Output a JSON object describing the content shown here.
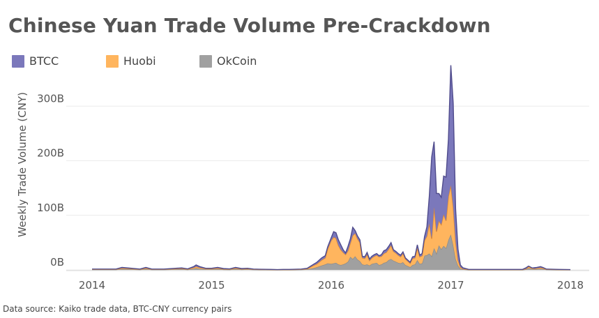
{
  "chart_data": {
    "type": "area",
    "stacked": true,
    "title": "Chinese Yuan Trade Volume Pre-Crackdown",
    "ylabel": "Weekly Trade Volume (CNY)",
    "xlabel": "",
    "ylim": [
      0,
      400
    ],
    "y_unit": "billion CNY",
    "y_ticks": [
      {
        "value": 0,
        "label": "0B"
      },
      {
        "value": 100,
        "label": "100B"
      },
      {
        "value": 200,
        "label": "200B"
      },
      {
        "value": 300,
        "label": "300B"
      }
    ],
    "xlim": [
      2014.0,
      2018.0
    ],
    "x_ticks": [
      {
        "value": 2014,
        "label": "2014"
      },
      {
        "value": 2015,
        "label": "2015"
      },
      {
        "value": 2016,
        "label": "2016"
      },
      {
        "value": 2017,
        "label": "2017"
      },
      {
        "value": 2018,
        "label": "2018"
      }
    ],
    "grid": true,
    "legend_position": "top-left",
    "x": [
      2014.0,
      2014.1,
      2014.2,
      2014.25,
      2014.3,
      2014.4,
      2014.45,
      2014.5,
      2014.6,
      2014.7,
      2014.75,
      2014.8,
      2014.85,
      2014.87,
      2014.9,
      2014.95,
      2015.0,
      2015.05,
      2015.1,
      2015.15,
      2015.2,
      2015.25,
      2015.3,
      2015.35,
      2015.4,
      2015.5,
      2015.55,
      2015.6,
      2015.65,
      2015.7,
      2015.75,
      2015.8,
      2015.85,
      2015.88,
      2015.92,
      2015.95,
      2015.97,
      2016.0,
      2016.02,
      2016.04,
      2016.06,
      2016.08,
      2016.1,
      2016.12,
      2016.14,
      2016.16,
      2016.18,
      2016.2,
      2016.22,
      2016.24,
      2016.26,
      2016.28,
      2016.3,
      2016.32,
      2016.34,
      2016.36,
      2016.38,
      2016.4,
      2016.42,
      2016.44,
      2016.46,
      2016.48,
      2016.5,
      2016.52,
      2016.54,
      2016.56,
      2016.58,
      2016.6,
      2016.62,
      2016.64,
      2016.66,
      2016.68,
      2016.7,
      2016.72,
      2016.74,
      2016.76,
      2016.78,
      2016.8,
      2016.82,
      2016.84,
      2016.86,
      2016.88,
      2016.9,
      2016.92,
      2016.94,
      2016.96,
      2016.98,
      2017.0,
      2017.02,
      2017.04,
      2017.06,
      2017.08,
      2017.1,
      2017.15,
      2017.2,
      2017.3,
      2017.5,
      2017.6,
      2017.63,
      2017.65,
      2017.68,
      2017.7,
      2017.72,
      2017.75,
      2017.77,
      2017.8,
      2017.9,
      2018.0
    ],
    "series": [
      {
        "name": "OkCoin",
        "color": "#a0a0a0",
        "values": [
          0.5,
          0.5,
          0.5,
          1.5,
          1.2,
          0.5,
          1.5,
          0.5,
          0.5,
          1,
          1.2,
          0.6,
          2,
          3,
          2,
          1,
          1,
          1.5,
          0.8,
          0.6,
          1.5,
          0.8,
          1,
          0.5,
          0.4,
          0.3,
          0.2,
          0.3,
          0.3,
          0.4,
          0.5,
          1,
          3,
          5,
          8,
          10,
          12,
          11,
          12,
          13,
          10,
          9,
          10,
          12,
          15,
          24,
          20,
          25,
          19,
          16,
          10,
          9,
          10,
          8,
          11,
          12,
          13,
          9,
          10,
          13,
          14,
          18,
          20,
          17,
          15,
          13,
          12,
          14,
          9,
          7,
          5,
          9,
          10,
          18,
          11,
          12,
          26,
          27,
          30,
          25,
          40,
          30,
          45,
          38,
          44,
          40,
          55,
          65,
          45,
          20,
          8,
          2,
          1,
          0.3,
          0.3,
          0.3,
          0.3,
          0.3,
          1,
          3,
          1.5,
          1,
          1.5,
          2,
          1.5,
          0.5,
          0.3,
          0.2
        ]
      },
      {
        "name": "Huobi",
        "color": "#ffb55e",
        "values": [
          0.5,
          0.5,
          0.5,
          1.5,
          1.2,
          0.5,
          1.5,
          0.5,
          0.5,
          1,
          1.2,
          0.6,
          2,
          3,
          2,
          1,
          1,
          1.5,
          0.8,
          0.6,
          1.5,
          0.8,
          1,
          0.5,
          0.4,
          0.3,
          0.2,
          0.3,
          0.3,
          0.4,
          0.5,
          1,
          5,
          6,
          10,
          12,
          26,
          43,
          48,
          45,
          35,
          28,
          22,
          16,
          20,
          25,
          43,
          42,
          38,
          34,
          12,
          12,
          18,
          9,
          11,
          13,
          14,
          15,
          15,
          17,
          18,
          20,
          25,
          17,
          16,
          14,
          12,
          16,
          11,
          9,
          7,
          12,
          12,
          22,
          13,
          14,
          28,
          35,
          55,
          32,
          75,
          40,
          45,
          45,
          58,
          50,
          80,
          90,
          70,
          32,
          10,
          3,
          1,
          0.3,
          0.3,
          0.3,
          0.3,
          0.3,
          1,
          3,
          1.5,
          1,
          1.5,
          2,
          1.5,
          0.5,
          0.3,
          0.2
        ]
      },
      {
        "name": "BTCC",
        "color": "#7b78bb",
        "values": [
          0.5,
          0.5,
          0.5,
          1.5,
          1.2,
          0.5,
          1.5,
          0.5,
          0.5,
          1,
          1.2,
          0.6,
          2,
          3,
          2,
          1,
          1,
          1.5,
          0.8,
          0.6,
          1.5,
          0.8,
          1,
          0.5,
          0.4,
          0.3,
          0.2,
          0.3,
          0.3,
          0.4,
          0.5,
          1,
          2,
          3,
          4,
          4,
          4,
          5,
          10,
          10,
          10,
          9,
          5,
          3,
          8,
          8,
          15,
          5,
          5,
          5,
          3,
          3,
          4,
          3,
          3,
          3,
          3,
          2,
          3,
          5,
          5,
          5,
          5,
          3,
          3,
          3,
          3,
          3,
          2,
          2,
          2,
          3,
          3,
          6,
          3,
          4,
          7,
          17,
          50,
          150,
          120,
          70,
          50,
          50,
          70,
          80,
          105,
          220,
          190,
          60,
          20,
          4,
          2,
          0.3,
          0.3,
          0.3,
          0.3,
          0.3,
          2,
          1,
          0.5,
          2,
          1.5,
          2,
          1.5,
          0.5,
          0.3,
          0.2
        ]
      }
    ]
  },
  "legend": [
    {
      "label": "BTCC",
      "color": "#7b78bb"
    },
    {
      "label": "Huobi",
      "color": "#ffb55e"
    },
    {
      "label": "OkCoin",
      "color": "#a0a0a0"
    }
  ],
  "source_text": "Data source: Kaiko trade data, BTC-CNY currency pairs"
}
